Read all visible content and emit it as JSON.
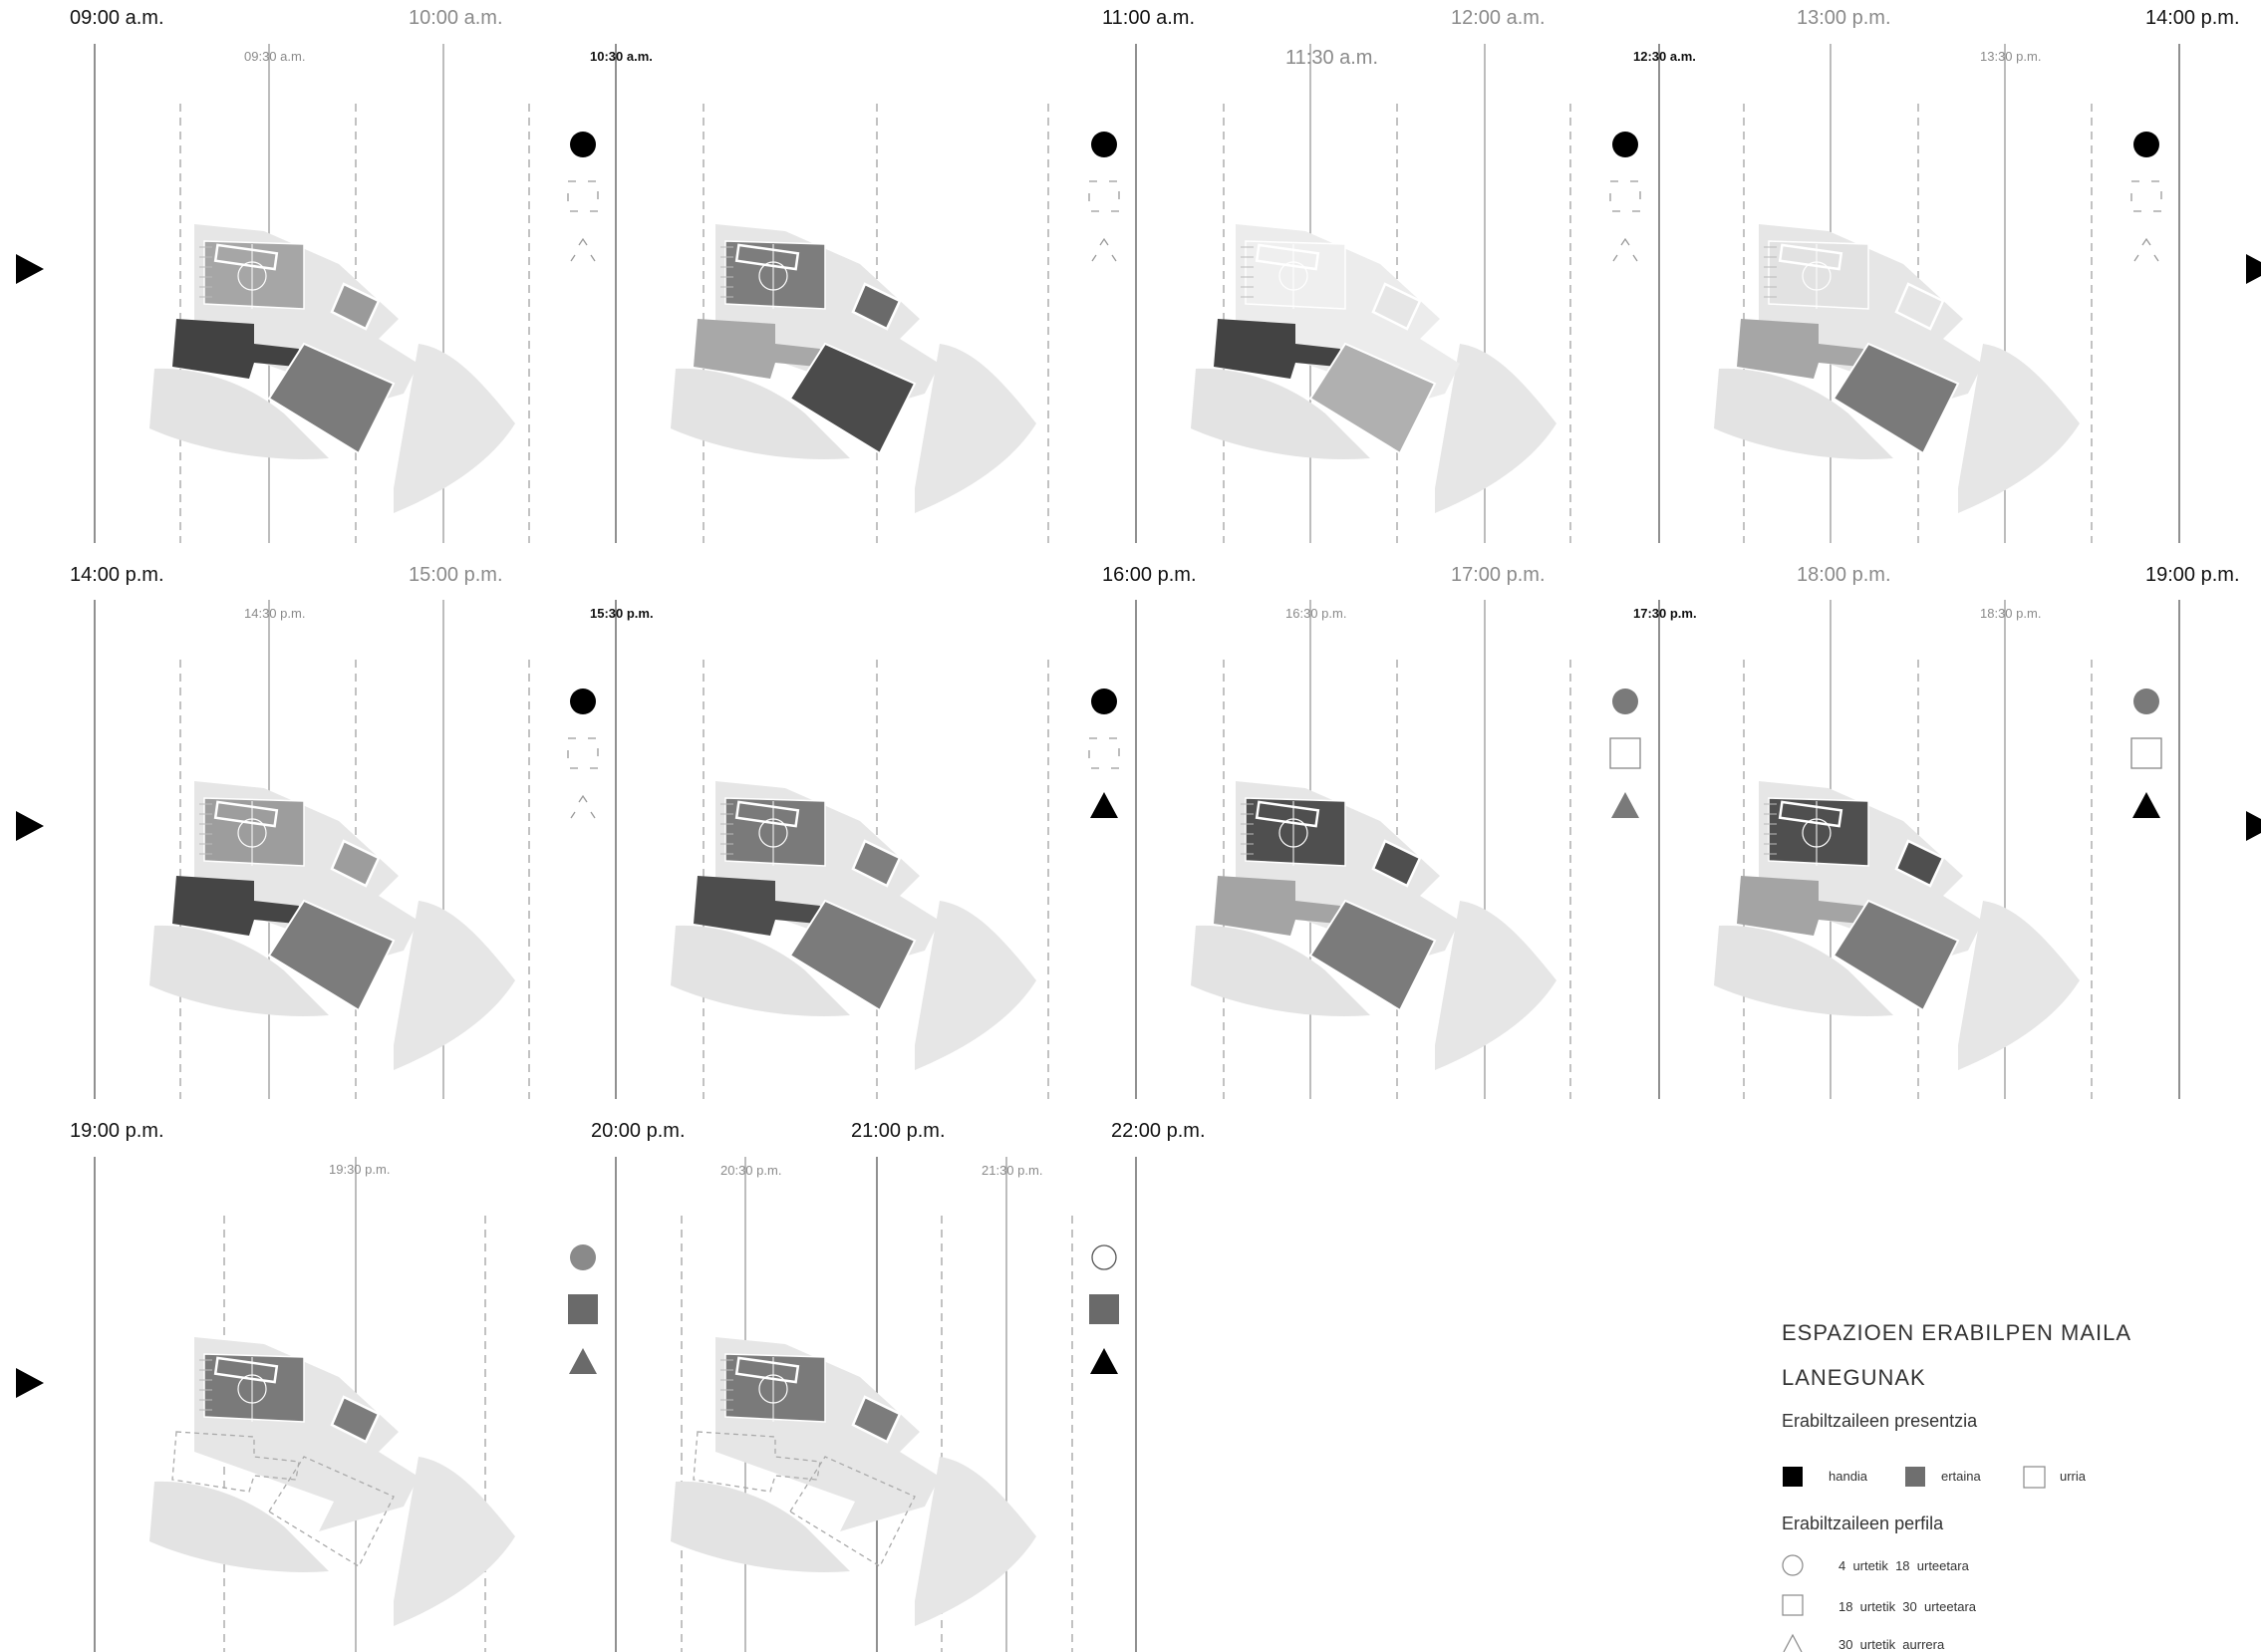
{
  "rows": [
    {
      "times": [
        {
          "label": "09:00 a.m.",
          "style": "major-dark"
        },
        {
          "label": "10:00 a.m.",
          "style": "major-grey"
        },
        {
          "label": "09:30 a.m.",
          "style": "minor-grey"
        },
        {
          "label": "10:30 a.m.",
          "style": "minor-dark"
        },
        {
          "label": "11:00 a.m.",
          "style": "major-dark"
        },
        {
          "label": "12:00 a.m.",
          "style": "major-grey"
        },
        {
          "label": "11:30 a.m.",
          "style": "major-grey"
        },
        {
          "label": "12:30 a.m.",
          "style": "minor-dark"
        },
        {
          "label": "13:00 p.m.",
          "style": "major-grey"
        },
        {
          "label": "13:30 p.m.",
          "style": "minor-grey"
        },
        {
          "label": "14:00 p.m.",
          "style": "major-dark"
        }
      ],
      "panels": [
        {
          "site": "#e6e6e6",
          "pitch": "#a6a6a6",
          "roof": "#a9a9a9",
          "west": "#424242",
          "south": "#7b7b7b",
          "annex": "#9a9a9a",
          "marks": {
            "circle": "#000000",
            "square": "dashed",
            "triangle": "dashed"
          }
        },
        {
          "site": "#e6e6e6",
          "pitch": "#7d7d7d",
          "roof": "#b6b6b6",
          "west": "#a8a8a8",
          "south": "#4b4b4b",
          "annex": "#6a6a6a",
          "marks": {
            "circle": "#000000",
            "square": "dashed",
            "triangle": "dashed"
          }
        },
        {
          "site": "#ececec",
          "pitch": "#efefef",
          "roof": "#e8e8e8",
          "west": "#434343",
          "south": "#b0b0b0",
          "annex": "#e6e6e6",
          "marks": {
            "circle": "#000000",
            "square": "dashed",
            "triangle": "dashed"
          }
        },
        {
          "site": "#e6e6e6",
          "pitch": "#e2e2e2",
          "roof": "#9e9e9e",
          "west": "#a6a6a6",
          "south": "#7a7a7a",
          "annex": "#e6e6e6",
          "marks": {
            "circle": "#000000",
            "square": "dashed",
            "triangle": "dashed"
          }
        }
      ]
    },
    {
      "times": [
        {
          "label": "14:00 p.m.",
          "style": "major-dark"
        },
        {
          "label": "15:00 p.m.",
          "style": "major-grey"
        },
        {
          "label": "14:30 p.m.",
          "style": "minor-grey"
        },
        {
          "label": "15:30 p.m.",
          "style": "minor-dark"
        },
        {
          "label": "16:00 p.m.",
          "style": "major-dark"
        },
        {
          "label": "17:00 p.m.",
          "style": "major-grey"
        },
        {
          "label": "16:30 p.m.",
          "style": "minor-grey"
        },
        {
          "label": "17:30 p.m.",
          "style": "minor-dark"
        },
        {
          "label": "18:00 p.m.",
          "style": "major-grey"
        },
        {
          "label": "18:30 p.m.",
          "style": "minor-grey"
        },
        {
          "label": "19:00 p.m.",
          "style": "major-dark"
        }
      ],
      "panels": [
        {
          "site": "#e6e6e6",
          "pitch": "#9d9d9d",
          "roof": "#a0a0a0",
          "west": "#454545",
          "south": "#7c7c7c",
          "annex": "#9d9d9d",
          "marks": {
            "circle": "#000000",
            "square": "dashed",
            "triangle": "dashed"
          }
        },
        {
          "site": "#e6e6e6",
          "pitch": "#7a7a7a",
          "roof": "#a3a3a3",
          "west": "#4d4d4d",
          "south": "#7b7b7b",
          "annex": "#7f7f7f",
          "marks": {
            "circle": "#000000",
            "square": "dashed",
            "triangle": "#000000"
          }
        },
        {
          "site": "#e6e6e6",
          "pitch": "#4f4f4f",
          "roof": "#9c9c9c",
          "west": "#a4a4a4",
          "south": "#7b7b7b",
          "annex": "#4f4f4f",
          "marks": {
            "circle": "#7a7a7a",
            "square": "outline",
            "triangle": "#7a7a7a"
          }
        },
        {
          "site": "#e6e6e6",
          "pitch": "#4f4f4f",
          "roof": "#9c9c9c",
          "west": "#a4a4a4",
          "south": "#7b7b7b",
          "annex": "#4f4f4f",
          "marks": {
            "circle": "#7a7a7a",
            "square": "outline",
            "triangle": "#000000"
          }
        }
      ]
    },
    {
      "times": [
        {
          "label": "19:00 p.m.",
          "style": "major-dark"
        },
        {
          "label": "19:30 p.m.",
          "style": "minor-grey"
        },
        {
          "label": "20:00 p.m.",
          "style": "major-dark"
        },
        {
          "label": "20:30 p.m.",
          "style": "minor-grey"
        },
        {
          "label": "21:00 p.m.",
          "style": "major-dark"
        },
        {
          "label": "21:30 p.m.",
          "style": "minor-grey"
        },
        {
          "label": "22:00 p.m.",
          "style": "major-dark"
        }
      ],
      "panels": [
        {
          "site": "#e6e6e6",
          "pitch": "#7a7a7a",
          "roof": "#9a9a9a",
          "west": "none",
          "south": "none",
          "annex": "#7c7c7c",
          "marks": {
            "circle": "#8a8a8a",
            "square": "#6a6a6a",
            "triangle": "#6a6a6a"
          }
        },
        {
          "site": "#e6e6e6",
          "pitch": "#7a7a7a",
          "roof": "#9a9a9a",
          "west": "none",
          "south": "none",
          "annex": "#7c7c7c",
          "marks": {
            "circle": "outline",
            "square": "#6a6a6a",
            "triangle": "#000000"
          }
        }
      ]
    }
  ],
  "legend": {
    "title": "ESPAZIOEN ERABILPEN MAILA",
    "subtitle": "LANEGUNAK",
    "presence_heading": "Erabiltzaileen presentzia",
    "presence": [
      {
        "label": "handia",
        "color": "#000000"
      },
      {
        "label": "ertaina",
        "color": "#6f6f6f"
      },
      {
        "label": "urria",
        "color": "#ffffff"
      }
    ],
    "profile_heading": "Erabiltzaileen perfila",
    "profile": [
      {
        "icon": "circle-icon",
        "label": "4  urtetik  18  urteetara"
      },
      {
        "icon": "square-icon",
        "label": "18  urtetik  30  urteetara"
      },
      {
        "icon": "triangle-icon",
        "label": "30  urtetik  aurrera"
      }
    ]
  }
}
